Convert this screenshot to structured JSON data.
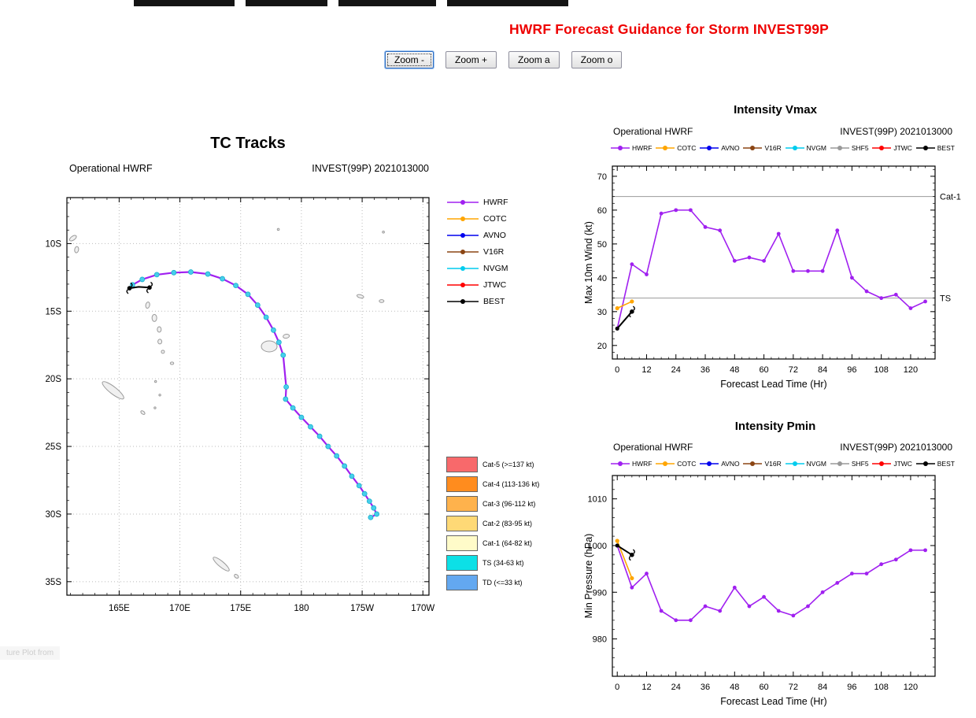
{
  "page": {
    "title": "HWRF Forecast Guidance for Storm INVEST99P",
    "title_color": "#EE0000",
    "footer_fragment": "ture Plot from"
  },
  "toolbar": {
    "buttons": [
      "Zoom -",
      "Zoom +",
      "Zoom a",
      "Zoom o"
    ]
  },
  "chart_data": [
    {
      "type": "line",
      "title": "TC Tracks",
      "subtitle_left": "Operational HWRF",
      "subtitle_right": "INVEST(99P) 2021013000",
      "lon_range": [
        160.7,
        190.5
      ],
      "lat_range": [
        6.6,
        36.0
      ],
      "lon_ticks": [
        {
          "v": 165,
          "label": "165E"
        },
        {
          "v": 170,
          "label": "170E"
        },
        {
          "v": 175,
          "label": "175E"
        },
        {
          "v": 180,
          "label": "180"
        },
        {
          "v": 185,
          "label": "175W"
        },
        {
          "v": 190,
          "label": "170W"
        }
      ],
      "lat_ticks": [
        {
          "v": 10,
          "label": "10S"
        },
        {
          "v": 15,
          "label": "15S"
        },
        {
          "v": 20,
          "label": "20S"
        },
        {
          "v": 25,
          "label": "25S"
        },
        {
          "v": 30,
          "label": "30S"
        },
        {
          "v": 35,
          "label": "35S"
        }
      ],
      "legend": [
        {
          "name": "HWRF",
          "color": "#A020F0"
        },
        {
          "name": "COTC",
          "color": "#FFA500"
        },
        {
          "name": "AVNO",
          "color": "#0000EE"
        },
        {
          "name": "V16R",
          "color": "#8B4513"
        },
        {
          "name": "NVGM",
          "color": "#00CCEE"
        },
        {
          "name": "JTWC",
          "color": "#FF0000"
        },
        {
          "name": "BEST",
          "color": "#000000"
        }
      ],
      "category_legend": [
        {
          "label": "Cat-5 (>=137 kt)",
          "color": "#F8696B"
        },
        {
          "label": "Cat-4 (113-136 kt)",
          "color": "#FF8C1E"
        },
        {
          "label": "Cat-3 (96-112 kt)",
          "color": "#FEB24C"
        },
        {
          "label": "Cat-2 (83-95 kt)",
          "color": "#FED976"
        },
        {
          "label": "Cat-1 (64-82 kt)",
          "color": "#FFFBC9"
        },
        {
          "label": "TS (34-63 kt)",
          "color": "#0CE0E6"
        },
        {
          "label": "TD (<=33 kt)",
          "color": "#63A8F0"
        }
      ],
      "series": [
        {
          "name": "HWRF",
          "line_color": "#A020F0",
          "dot_color": "#47CEEB",
          "points": [
            [
              166.1,
              13.05
            ],
            [
              166.9,
              12.65
            ],
            [
              168.1,
              12.3
            ],
            [
              169.5,
              12.15
            ],
            [
              170.9,
              12.1
            ],
            [
              172.3,
              12.25
            ],
            [
              173.5,
              12.6
            ],
            [
              174.6,
              13.1
            ],
            [
              175.6,
              13.75
            ],
            [
              176.4,
              14.55
            ],
            [
              177.1,
              15.45
            ],
            [
              177.7,
              16.4
            ],
            [
              178.15,
              17.3
            ],
            [
              178.5,
              18.25
            ],
            [
              178.75,
              20.6
            ],
            [
              178.7,
              21.5
            ],
            [
              179.3,
              22.15
            ],
            [
              180.0,
              22.85
            ],
            [
              180.75,
              23.55
            ],
            [
              181.5,
              24.25
            ],
            [
              182.2,
              25.0
            ],
            [
              182.9,
              25.7
            ],
            [
              183.55,
              26.45
            ],
            [
              184.15,
              27.2
            ],
            [
              184.75,
              27.9
            ],
            [
              185.2,
              28.5
            ],
            [
              185.6,
              29.05
            ],
            [
              185.95,
              29.55
            ],
            [
              186.2,
              30.0
            ],
            [
              185.7,
              30.25
            ]
          ]
        },
        {
          "name": "BEST",
          "line_color": "#000000",
          "points": [
            [
              165.85,
              13.3
            ],
            [
              166.6,
              13.2
            ],
            [
              167.5,
              13.25
            ]
          ]
        }
      ]
    },
    {
      "type": "line",
      "title": "Intensity Vmax",
      "subtitle_left": "Operational HWRF",
      "subtitle_right": "INVEST(99P) 2021013000",
      "xlabel": "Forecast Lead Time (Hr)",
      "ylabel": "Max 10m Wind (kt)",
      "xlim": [
        -2,
        130
      ],
      "ylim": [
        16,
        73
      ],
      "xticks": [
        0,
        12,
        24,
        36,
        48,
        60,
        72,
        84,
        96,
        108,
        120
      ],
      "yticks": [
        20,
        30,
        40,
        50,
        60,
        70
      ],
      "x_minor_step": 3,
      "y_minor_step": 2,
      "ref_lines": [
        {
          "y": 64,
          "label": "Cat-1"
        },
        {
          "y": 34,
          "label": "TS"
        }
      ],
      "legend": [
        {
          "name": "HWRF",
          "color": "#A020F0"
        },
        {
          "name": "COTC",
          "color": "#FFA500"
        },
        {
          "name": "AVNO",
          "color": "#0000EE"
        },
        {
          "name": "V16R",
          "color": "#8B4513"
        },
        {
          "name": "NVGM",
          "color": "#00CCEE"
        },
        {
          "name": "SHF5",
          "color": "#999999"
        },
        {
          "name": "JTWC",
          "color": "#FF0000"
        },
        {
          "name": "BEST",
          "color": "#000000"
        }
      ],
      "series": [
        {
          "name": "HWRF",
          "color": "#A020F0",
          "x": [
            0,
            6,
            12,
            18,
            24,
            30,
            36,
            42,
            48,
            54,
            60,
            66,
            72,
            78,
            84,
            90,
            96,
            102,
            108,
            114,
            120,
            126
          ],
          "values": [
            25,
            44,
            41,
            59,
            60,
            60,
            55,
            54,
            45,
            46,
            45,
            53,
            42,
            42,
            42,
            54,
            40,
            36,
            34,
            35,
            31,
            33
          ]
        },
        {
          "name": "COTC",
          "color": "#FFA500",
          "x": [
            0,
            6
          ],
          "values": [
            31,
            33
          ]
        },
        {
          "name": "BEST",
          "color": "#000000",
          "x": [
            0,
            6
          ],
          "values": [
            25,
            30
          ]
        }
      ]
    },
    {
      "type": "line",
      "title": "Intensity Pmin",
      "subtitle_left": "Operational HWRF",
      "subtitle_right": "INVEST(99P) 2021013000",
      "xlabel": "Forecast Lead Time (Hr)",
      "ylabel": "Min Pressure (hPa)",
      "xlim": [
        -2,
        130
      ],
      "ylim": [
        972,
        1015
      ],
      "xticks": [
        0,
        12,
        24,
        36,
        48,
        60,
        72,
        84,
        96,
        108,
        120
      ],
      "yticks": [
        980,
        990,
        1000,
        1010
      ],
      "x_minor_step": 3,
      "y_minor_step": 2,
      "ref_lines": [],
      "legend": [
        {
          "name": "HWRF",
          "color": "#A020F0"
        },
        {
          "name": "COTC",
          "color": "#FFA500"
        },
        {
          "name": "AVNO",
          "color": "#0000EE"
        },
        {
          "name": "V16R",
          "color": "#8B4513"
        },
        {
          "name": "NVGM",
          "color": "#00CCEE"
        },
        {
          "name": "SHF5",
          "color": "#999999"
        },
        {
          "name": "JTWC",
          "color": "#FF0000"
        },
        {
          "name": "BEST",
          "color": "#000000"
        }
      ],
      "series": [
        {
          "name": "HWRF",
          "color": "#A020F0",
          "x": [
            0,
            6,
            12,
            18,
            24,
            30,
            36,
            42,
            48,
            54,
            60,
            66,
            72,
            78,
            84,
            90,
            96,
            102,
            108,
            114,
            120,
            126
          ],
          "values": [
            1000,
            991,
            994,
            986,
            984,
            984,
            987,
            986,
            991,
            987,
            989,
            986,
            985,
            987,
            990,
            992,
            994,
            994,
            996,
            997,
            999,
            999
          ]
        },
        {
          "name": "COTC",
          "color": "#FFA500",
          "x": [
            0,
            6
          ],
          "values": [
            1001,
            993
          ]
        },
        {
          "name": "BEST",
          "color": "#000000",
          "x": [
            0,
            6
          ],
          "values": [
            1000,
            998
          ]
        }
      ]
    }
  ]
}
